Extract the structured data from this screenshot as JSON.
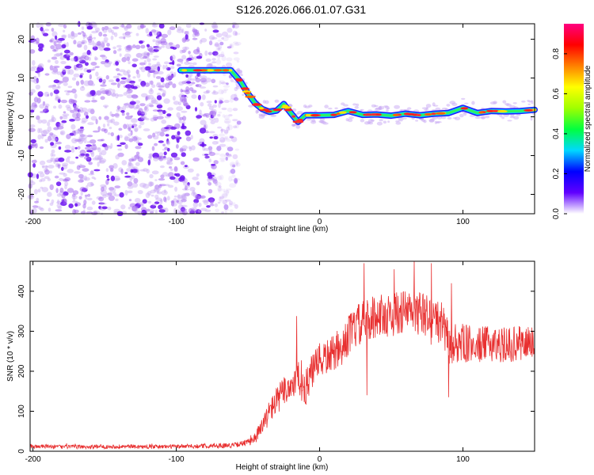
{
  "title": "S126.2026.066.01.07.G31",
  "chart_data": [
    {
      "type": "heatmap",
      "title": "S126.2026.066.01.07.G31",
      "xlabel": "Height of straight line (km)",
      "ylabel": "Frequency (Hz)",
      "xlim": [
        -202,
        150
      ],
      "ylim": [
        -25,
        24
      ],
      "xticks": [
        -200,
        -100,
        0,
        100
      ],
      "xtick_labels": [
        "-200",
        "-100",
        "0",
        "100"
      ],
      "yticks": [
        -20,
        -10,
        0,
        10,
        20
      ],
      "ytick_labels": [
        "-20",
        "-10",
        "0",
        "10",
        "20"
      ],
      "noise_region_x": [
        -202,
        -60
      ],
      "ridge": {
        "x": [
          -97,
          -80,
          -62,
          -55,
          -50,
          -45,
          -40,
          -35,
          -30,
          -25,
          -20,
          -15,
          -10,
          0,
          10,
          20,
          30,
          40,
          50,
          60,
          70,
          80,
          90,
          100,
          110,
          120,
          130,
          140,
          150
        ],
        "freq": [
          12,
          12,
          12,
          9,
          6,
          3.5,
          2,
          1.3,
          1.6,
          3.3,
          0.9,
          -1.3,
          0.4,
          0.4,
          0.5,
          1.5,
          0.5,
          0.6,
          0.3,
          0.8,
          0.4,
          0.8,
          1.0,
          2.3,
          1.0,
          1.5,
          1.4,
          1.5,
          1.8
        ]
      },
      "colorbar": {
        "label": "Normalized spectral amplitude",
        "range": [
          0,
          0.95
        ],
        "ticks": [
          0.0,
          0.2,
          0.4,
          0.6,
          0.8
        ],
        "tick_labels": [
          "0.0",
          "0.2",
          "0.4",
          "0.6",
          "0.8"
        ],
        "stops": [
          "#ffffff",
          "#6000ff",
          "#0000ff",
          "#00d8ff",
          "#00ff40",
          "#a0ff00",
          "#ffff00",
          "#ff8000",
          "#ff0000",
          "#ff0080"
        ]
      }
    },
    {
      "type": "line",
      "xlabel": "Height of straight line (km)",
      "ylabel": "SNR (10 * v/v)",
      "xlim": [
        -202,
        150
      ],
      "ylim": [
        0,
        475
      ],
      "xticks": [
        -200,
        -100,
        0,
        100
      ],
      "xtick_labels": [
        "-200",
        "-100",
        "0",
        "100"
      ],
      "yticks": [
        0,
        100,
        200,
        300,
        400
      ],
      "ytick_labels": [
        "0",
        "100",
        "200",
        "300",
        "400"
      ],
      "series": [
        {
          "name": "SNR",
          "color": "#e83030",
          "x": [
            -202,
            -190,
            -180,
            -160,
            -140,
            -120,
            -100,
            -80,
            -60,
            -50,
            -45,
            -40,
            -35,
            -30,
            -25,
            -20,
            -15,
            -10,
            -5,
            0,
            5,
            10,
            15,
            20,
            25,
            30,
            35,
            40,
            50,
            60,
            70,
            80,
            85,
            90,
            95,
            100,
            110,
            120,
            130,
            140,
            150
          ],
          "y": [
            12,
            12,
            11,
            11,
            12,
            11,
            12,
            13,
            15,
            22,
            35,
            60,
            100,
            125,
            150,
            165,
            180,
            155,
            200,
            225,
            235,
            245,
            250,
            290,
            310,
            320,
            330,
            340,
            340,
            350,
            345,
            330,
            320,
            270,
            265,
            270,
            265,
            270,
            265,
            270,
            275
          ],
          "noise_amplitude": [
            5,
            5,
            5,
            5,
            5,
            5,
            5,
            6,
            6,
            8,
            15,
            25,
            30,
            35,
            40,
            40,
            45,
            45,
            45,
            45,
            45,
            45,
            45,
            50,
            55,
            55,
            55,
            55,
            55,
            55,
            55,
            55,
            55,
            55,
            50,
            50,
            45,
            45,
            45,
            45,
            45
          ],
          "spikes": [
            {
              "x": -16,
              "y": 338
            },
            {
              "x": 31,
              "y": 470
            },
            {
              "x": 52,
              "y": 455
            },
            {
              "x": 66,
              "y": 475
            },
            {
              "x": 78,
              "y": 470
            },
            {
              "x": 92,
              "y": 420
            },
            {
              "x": 33,
              "y": 140
            },
            {
              "x": 90,
              "y": 135
            }
          ]
        }
      ]
    }
  ]
}
